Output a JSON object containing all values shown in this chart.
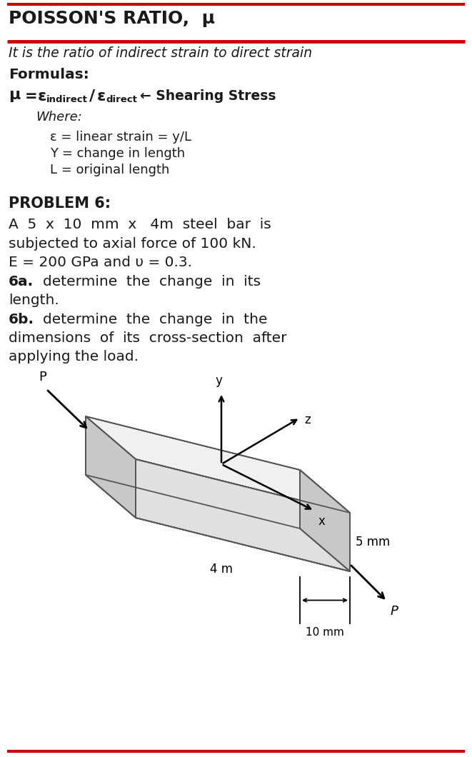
{
  "title": "POISSON'S RATIO,  μ",
  "subtitle": "It is the ratio of indirect strain to direct strain",
  "formulas_label": "Formulas:",
  "where_label": "Where:",
  "def1": "ε = linear strain = y/L",
  "def2": "Y = change in length",
  "def3": "L = original length",
  "problem_label": "PROBLEM 6:",
  "problem_text1": "A  5  x  10  mm  x   4m  steel  bar  is",
  "problem_text2": "subjected to axial force of 100 kN.",
  "problem_text3": "E = 200 GPa and υ = 0.3.",
  "bg_color": "#ffffff",
  "title_color": "#1a1a1a",
  "text_color": "#1a1a1a",
  "red_color": "#cc0000",
  "bar_top_color": "#f0f0f0",
  "bar_front_color": "#e0e0e0",
  "bar_side_color": "#c8c8c8",
  "bar_right_color": "#b8b8b8",
  "bar_bottom_color": "#d0d0d0",
  "edge_color": "#555555"
}
